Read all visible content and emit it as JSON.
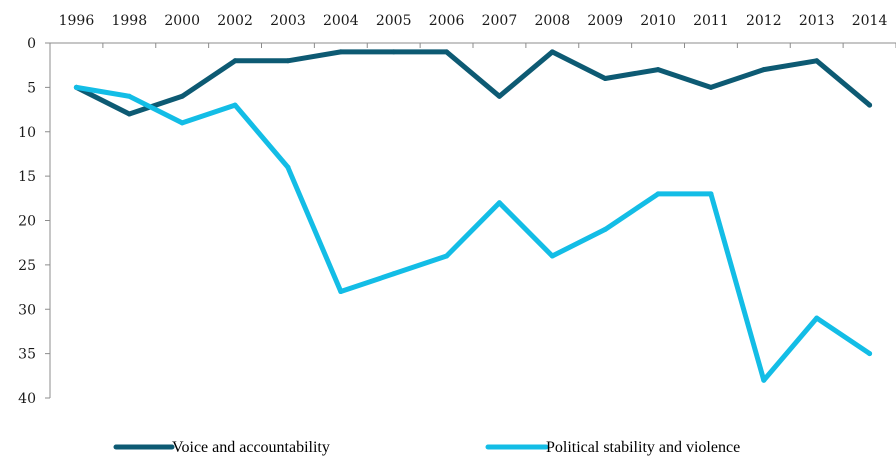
{
  "chart_data": {
    "type": "line",
    "title": "",
    "xlabel": "",
    "ylabel": "",
    "categories": [
      "1996",
      "1998",
      "2000",
      "2002",
      "2003",
      "2004",
      "2005",
      "2006",
      "2007",
      "2008",
      "2009",
      "2010",
      "2011",
      "2012",
      "2013",
      "2014"
    ],
    "y_axis": {
      "range": [
        0,
        40
      ],
      "ticks": [
        0,
        5,
        10,
        15,
        20,
        25,
        30,
        35,
        40
      ],
      "inverted": true
    },
    "x_axis_position": "top",
    "grid": false,
    "legend_position": "bottom",
    "series": [
      {
        "name": "Voice and accountability",
        "color": "#0d5a73",
        "values": [
          5,
          8,
          6,
          2,
          2,
          1,
          1,
          1,
          6,
          1,
          4,
          3,
          5,
          3,
          2,
          7
        ]
      },
      {
        "name": "Political stability and violence",
        "color": "#13bde6",
        "values": [
          5,
          6,
          9,
          7,
          14,
          28,
          26,
          24,
          18,
          24,
          21,
          17,
          17,
          38,
          31,
          35
        ]
      }
    ]
  }
}
